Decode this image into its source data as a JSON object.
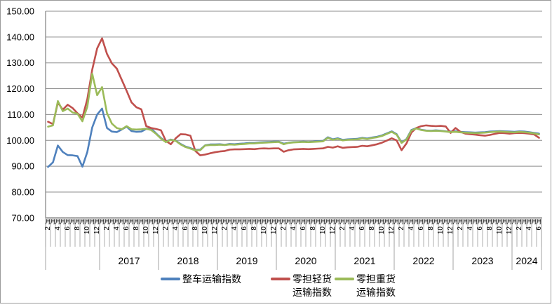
{
  "chart_data": {
    "type": "line",
    "title": "",
    "grid": true,
    "legend_position": "bottom",
    "x": [
      "2016-02",
      "2016-03",
      "2016-04",
      "2016-05",
      "2016-06",
      "2016-07",
      "2016-08",
      "2016-09",
      "2016-10",
      "2016-11",
      "2016-12",
      "2017-01",
      "2017-02",
      "2017-03",
      "2017-04",
      "2017-05",
      "2017-06",
      "2017-07",
      "2017-08",
      "2017-09",
      "2017-10",
      "2017-11",
      "2017-12",
      "2018-01",
      "2018-02",
      "2018-03",
      "2018-04",
      "2018-05",
      "2018-06",
      "2018-07",
      "2018-08",
      "2018-09",
      "2018-10",
      "2018-11",
      "2018-12",
      "2019-01",
      "2019-02",
      "2019-03",
      "2019-04",
      "2019-05",
      "2019-06",
      "2019-07",
      "2019-08",
      "2019-09",
      "2019-10",
      "2019-11",
      "2019-12",
      "2020-01",
      "2020-02",
      "2020-03",
      "2020-04",
      "2020-05",
      "2020-06",
      "2020-07",
      "2020-08",
      "2020-09",
      "2020-10",
      "2020-11",
      "2020-12",
      "2021-01",
      "2021-02",
      "2021-03",
      "2021-04",
      "2021-05",
      "2021-06",
      "2021-07",
      "2021-08",
      "2021-09",
      "2021-10",
      "2021-11",
      "2021-12",
      "2022-01",
      "2022-02",
      "2022-03",
      "2022-04",
      "2022-05",
      "2022-06",
      "2022-07",
      "2022-08",
      "2022-09",
      "2022-10",
      "2022-11",
      "2022-12",
      "2023-01",
      "2023-02",
      "2023-03",
      "2023-04",
      "2023-05",
      "2023-06",
      "2023-07",
      "2023-08",
      "2023-09",
      "2023-10",
      "2023-11",
      "2023-12",
      "2024-01",
      "2024-02",
      "2024-03",
      "2024-04",
      "2024-05",
      "2024-06"
    ],
    "series": [
      {
        "name": "整车运输指数",
        "color": "#4F81BD",
        "values": [
          89.7,
          91.5,
          98.0,
          95.5,
          94.3,
          94.2,
          93.9,
          89.8,
          95.5,
          105.0,
          110.0,
          112.3,
          104.8,
          103.4,
          103.2,
          104.2,
          105.3,
          103.6,
          103.3,
          103.4,
          104.4,
          104.6,
          102.7,
          100.9,
          99.5,
          100.3,
          99.9,
          98.6,
          97.6,
          97.0,
          96.3,
          96.4,
          98.1,
          98.4,
          98.4,
          98.5,
          98.3,
          98.6,
          98.5,
          98.7,
          98.8,
          99.0,
          99.0,
          99.2,
          99.3,
          99.4,
          99.5,
          99.5,
          98.7,
          99.1,
          99.3,
          99.4,
          99.5,
          99.4,
          99.5,
          99.7,
          99.8,
          101.2,
          100.4,
          100.8,
          100.2,
          100.4,
          100.5,
          100.6,
          101.0,
          100.7,
          101.1,
          101.4,
          101.9,
          102.7,
          103.5,
          102.4,
          99.2,
          100.5,
          104.0,
          104.7,
          104.1,
          103.8,
          103.7,
          103.9,
          103.7,
          103.5,
          103.4,
          103.5,
          103.3,
          103.2,
          103.1,
          103.0,
          103.1,
          103.2,
          103.4,
          103.5,
          103.6,
          103.5,
          103.4,
          103.3,
          103.5,
          103.4,
          103.2,
          102.9,
          102.6
        ]
      },
      {
        "name": "零担轻货运输指数",
        "color": "#C0504D",
        "values": [
          107.2,
          106.3,
          114.6,
          111.9,
          113.8,
          112.5,
          110.5,
          108.8,
          116.0,
          127.4,
          135.6,
          139.5,
          133.5,
          129.8,
          127.8,
          123.5,
          119.2,
          114.7,
          112.8,
          112.0,
          105.5,
          104.8,
          104.4,
          103.9,
          99.8,
          98.5,
          100.8,
          102.4,
          102.3,
          101.8,
          95.9,
          94.2,
          94.5,
          95.0,
          95.4,
          95.7,
          95.9,
          96.4,
          96.5,
          96.5,
          96.6,
          96.7,
          96.6,
          96.8,
          96.9,
          96.8,
          96.9,
          96.9,
          95.6,
          96.2,
          96.5,
          96.6,
          96.7,
          96.6,
          96.7,
          96.8,
          96.9,
          97.5,
          97.2,
          97.7,
          97.1,
          97.3,
          97.4,
          97.5,
          97.9,
          97.7,
          98.1,
          98.5,
          99.1,
          99.9,
          100.8,
          100.0,
          96.2,
          98.8,
          103.0,
          104.8,
          105.5,
          105.8,
          105.6,
          105.5,
          105.6,
          105.4,
          102.9,
          104.8,
          103.3,
          102.6,
          102.4,
          102.2,
          102.0,
          101.8,
          102.1,
          102.5,
          102.9,
          102.8,
          102.6,
          102.8,
          102.9,
          102.8,
          102.6,
          102.3,
          101.0
        ]
      },
      {
        "name": "零担重货运输指数",
        "color": "#9BBB59",
        "values": [
          105.3,
          105.8,
          115.2,
          111.3,
          112.3,
          110.8,
          110.3,
          107.4,
          113.0,
          125.8,
          117.5,
          120.6,
          110.6,
          106.5,
          104.8,
          104.3,
          105.5,
          104.3,
          104.2,
          104.3,
          104.5,
          104.0,
          102.5,
          100.7,
          99.3,
          100.2,
          99.8,
          98.4,
          97.4,
          96.8,
          96.1,
          96.2,
          98.0,
          98.2,
          98.2,
          98.3,
          98.2,
          98.4,
          98.3,
          98.5,
          98.6,
          98.8,
          98.8,
          99.0,
          99.1,
          99.2,
          99.3,
          99.4,
          98.5,
          99.0,
          99.2,
          99.3,
          99.4,
          99.3,
          99.4,
          99.5,
          99.6,
          101.0,
          100.2,
          100.6,
          100.0,
          100.2,
          100.3,
          100.4,
          100.8,
          100.5,
          100.9,
          101.2,
          101.7,
          102.5,
          103.3,
          102.2,
          99.0,
          100.3,
          103.8,
          104.6,
          104.0,
          103.7,
          103.6,
          103.7,
          103.6,
          103.4,
          103.2,
          103.3,
          103.1,
          103.0,
          102.9,
          102.8,
          102.9,
          103.0,
          103.2,
          103.3,
          103.4,
          103.3,
          103.2,
          103.1,
          103.3,
          103.2,
          103.0,
          102.7,
          102.3
        ]
      }
    ],
    "y_axis": {
      "min": 70,
      "max": 150,
      "step": 10,
      "tick_labels": [
        "150.00",
        "140.00",
        "130.00",
        "120.00",
        "110.00",
        "100.00",
        "90.00",
        "80.00",
        "70.00"
      ]
    },
    "x_axis": {
      "unit_glyph": "月",
      "month_numbers_shown": [
        2,
        4,
        6,
        8,
        10,
        12
      ],
      "year_labels": [
        "2017",
        "2018",
        "2019",
        "2020",
        "2021",
        "2022",
        "2023",
        "2024"
      ],
      "first_group_year_label": ""
    }
  },
  "legend": {
    "items": [
      {
        "line1": "整车运输指数",
        "line2": "",
        "color": "#4F81BD"
      },
      {
        "line1": "零担轻货",
        "line2": "运输指数",
        "color": "#C0504D"
      },
      {
        "line1": "零担重货",
        "line2": "运输指数",
        "color": "#9BBB59"
      }
    ]
  },
  "colors": {
    "gridline": "#8c8c8c",
    "axis": "#808080",
    "tick": "#999999",
    "text": "#000000",
    "chart_border": "#9a9a9a"
  }
}
